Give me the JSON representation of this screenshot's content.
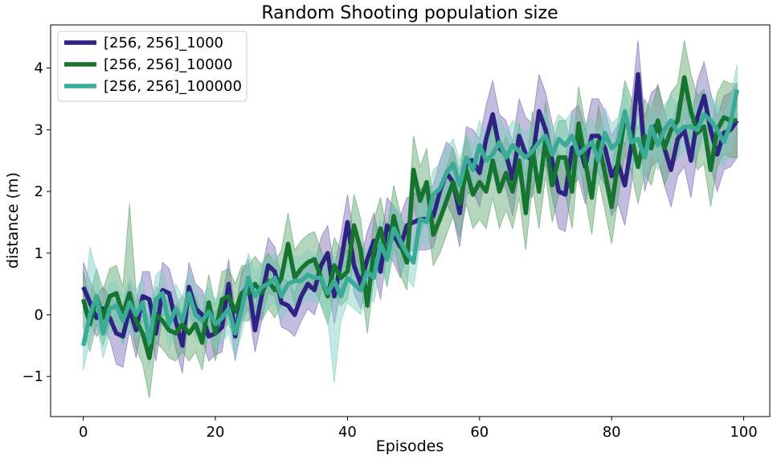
{
  "chart_data": {
    "type": "line",
    "title": "Random Shooting population size",
    "xlabel": "Episodes",
    "ylabel": "distance (m)",
    "xlim": [
      -4.95,
      103.95
    ],
    "ylim": [
      -1.65,
      4.7
    ],
    "xticks": [
      0,
      20,
      40,
      60,
      80,
      100
    ],
    "yticks": [
      -1,
      0,
      1,
      2,
      3,
      4
    ],
    "ytick_labels": [
      "−1",
      "0",
      "1",
      "2",
      "3",
      "4"
    ],
    "legend_position": "top-left",
    "grid": false,
    "band": "shaded variability band around each mean line",
    "series": [
      {
        "name": "[256, 256]_1000",
        "color": "#2e2383",
        "band_color": "#7b6bb5",
        "x": [
          0,
          1,
          2,
          3,
          4,
          5,
          6,
          7,
          8,
          9,
          10,
          11,
          12,
          13,
          14,
          15,
          16,
          17,
          18,
          19,
          20,
          21,
          22,
          23,
          24,
          25,
          26,
          27,
          28,
          29,
          30,
          31,
          32,
          33,
          34,
          35,
          36,
          37,
          38,
          39,
          40,
          41,
          42,
          43,
          44,
          45,
          46,
          47,
          48,
          49,
          50,
          51,
          52,
          53,
          54,
          55,
          56,
          57,
          58,
          59,
          60,
          61,
          62,
          63,
          64,
          65,
          66,
          67,
          68,
          69,
          70,
          71,
          72,
          73,
          74,
          75,
          76,
          77,
          78,
          79,
          80,
          81,
          82,
          83,
          84,
          85,
          86,
          87,
          88,
          89,
          90,
          91,
          92,
          93,
          94,
          95,
          96,
          97,
          98,
          99
        ],
        "mean": [
          0.45,
          0.2,
          -0.05,
          0.1,
          -0.05,
          -0.3,
          -0.35,
          0.1,
          -0.25,
          0.3,
          0.25,
          -0.3,
          0.4,
          0.35,
          -0.1,
          -0.5,
          0.45,
          0.1,
          0.0,
          -0.35,
          -0.3,
          -0.2,
          0.5,
          -0.35,
          0.3,
          0.5,
          -0.25,
          0.3,
          0.8,
          0.7,
          0.2,
          0.15,
          0.0,
          0.3,
          0.5,
          0.4,
          0.8,
          1.0,
          0.3,
          0.85,
          1.5,
          0.8,
          0.5,
          0.9,
          1.2,
          0.7,
          1.45,
          1.3,
          1.1,
          1.45,
          1.5,
          1.55,
          1.55,
          1.6,
          2.0,
          2.3,
          2.15,
          1.65,
          2.5,
          2.5,
          2.3,
          2.85,
          3.25,
          2.7,
          2.6,
          2.2,
          2.9,
          2.6,
          2.5,
          3.3,
          3.0,
          2.5,
          2.0,
          1.95,
          2.7,
          2.8,
          2.4,
          2.9,
          2.9,
          2.7,
          2.25,
          2.45,
          2.1,
          2.75,
          3.9,
          2.6,
          3.0,
          3.1,
          2.7,
          2.35,
          2.85,
          3.0,
          2.5,
          3.2,
          3.55,
          3.0,
          2.6,
          2.95,
          3.0,
          3.15
        ],
        "lower": [
          0.05,
          -0.15,
          -0.35,
          -0.2,
          -0.4,
          -0.8,
          -0.85,
          -0.25,
          -0.7,
          -0.1,
          -0.2,
          -0.75,
          0.0,
          -0.05,
          -0.55,
          -0.95,
          0.05,
          -0.3,
          -0.4,
          -0.75,
          -0.65,
          -0.6,
          0.1,
          -0.75,
          -0.1,
          0.1,
          -0.6,
          -0.1,
          0.35,
          0.3,
          -0.2,
          -0.25,
          -0.35,
          -0.1,
          0.1,
          0.0,
          0.35,
          0.55,
          -0.15,
          0.4,
          1.05,
          0.35,
          0.1,
          0.45,
          0.75,
          0.25,
          1.0,
          0.85,
          0.6,
          1.0,
          1.05,
          1.05,
          1.05,
          1.1,
          1.5,
          1.8,
          1.6,
          1.1,
          1.95,
          2.0,
          1.75,
          2.3,
          2.7,
          2.15,
          2.05,
          1.6,
          2.3,
          2.0,
          1.9,
          2.7,
          2.4,
          1.9,
          1.4,
          1.35,
          2.1,
          2.2,
          1.8,
          2.3,
          2.3,
          2.1,
          1.6,
          1.8,
          1.45,
          2.1,
          3.35,
          2.0,
          2.4,
          2.5,
          2.1,
          1.75,
          2.25,
          2.4,
          1.9,
          2.6,
          3.0,
          2.4,
          2.0,
          2.35,
          2.4,
          2.55
        ],
        "upper": [
          0.85,
          0.55,
          0.3,
          0.45,
          0.3,
          0.2,
          0.15,
          0.5,
          0.2,
          0.7,
          0.7,
          0.15,
          0.85,
          0.75,
          0.35,
          -0.05,
          0.85,
          0.5,
          0.4,
          0.05,
          0.05,
          0.2,
          0.9,
          0.05,
          0.7,
          0.9,
          0.1,
          0.7,
          1.25,
          1.1,
          0.6,
          0.55,
          0.35,
          0.7,
          0.9,
          0.8,
          1.25,
          1.45,
          0.75,
          1.3,
          1.95,
          1.25,
          0.9,
          1.35,
          1.65,
          1.15,
          1.9,
          1.75,
          1.6,
          1.9,
          1.95,
          2.05,
          2.05,
          2.1,
          2.5,
          2.8,
          2.7,
          2.2,
          3.05,
          3.0,
          2.85,
          3.4,
          3.8,
          3.25,
          3.15,
          2.8,
          3.5,
          3.2,
          3.1,
          3.9,
          3.6,
          3.1,
          2.6,
          2.55,
          3.3,
          3.4,
          3.0,
          3.5,
          3.5,
          3.3,
          2.9,
          3.1,
          2.75,
          3.4,
          4.45,
          3.2,
          3.6,
          3.7,
          3.3,
          2.95,
          3.45,
          3.6,
          3.1,
          3.8,
          4.1,
          3.6,
          3.2,
          3.55,
          3.6,
          3.75
        ]
      },
      {
        "name": "[256, 256]_10000",
        "color": "#15742f",
        "band_color": "#5aa46a",
        "x": [
          0,
          1,
          2,
          3,
          4,
          5,
          6,
          7,
          8,
          9,
          10,
          11,
          12,
          13,
          14,
          15,
          16,
          17,
          18,
          19,
          20,
          21,
          22,
          23,
          24,
          25,
          26,
          27,
          28,
          29,
          30,
          31,
          32,
          33,
          34,
          35,
          36,
          37,
          38,
          39,
          40,
          41,
          42,
          43,
          44,
          45,
          46,
          47,
          48,
          49,
          50,
          51,
          52,
          53,
          54,
          55,
          56,
          57,
          58,
          59,
          60,
          61,
          62,
          63,
          64,
          65,
          66,
          67,
          68,
          69,
          70,
          71,
          72,
          73,
          74,
          75,
          76,
          77,
          78,
          79,
          80,
          81,
          82,
          83,
          84,
          85,
          86,
          87,
          88,
          89,
          90,
          91,
          92,
          93,
          94,
          95,
          96,
          97,
          98,
          99
        ],
        "mean": [
          0.25,
          -0.15,
          0.3,
          -0.05,
          0.3,
          0.35,
          0.0,
          0.35,
          -0.1,
          -0.3,
          -0.7,
          0.0,
          -0.1,
          -0.25,
          -0.3,
          -0.15,
          -0.3,
          -0.15,
          -0.45,
          0.2,
          -0.3,
          0.25,
          0.3,
          0.05,
          0.35,
          0.35,
          0.5,
          0.35,
          0.55,
          0.4,
          0.6,
          1.15,
          0.6,
          0.75,
          0.85,
          0.9,
          0.6,
          0.3,
          0.8,
          0.6,
          0.7,
          1.45,
          1.05,
          0.15,
          1.05,
          1.4,
          0.9,
          1.6,
          1.15,
          0.85,
          2.35,
          1.85,
          2.15,
          1.3,
          1.55,
          1.85,
          2.15,
          1.8,
          2.35,
          1.95,
          2.15,
          2.0,
          2.5,
          2.0,
          2.3,
          2.0,
          2.5,
          1.65,
          2.7,
          2.0,
          2.85,
          2.1,
          2.55,
          2.55,
          2.0,
          3.1,
          2.5,
          1.9,
          2.8,
          2.3,
          1.75,
          2.5,
          3.2,
          2.9,
          2.4,
          2.9,
          2.7,
          3.15,
          2.7,
          3.0,
          3.15,
          3.85,
          3.3,
          2.95,
          3.05,
          2.35,
          3.0,
          3.2,
          3.15,
          3.15
        ],
        "lower": [
          -0.2,
          -0.6,
          -0.15,
          -0.5,
          -0.15,
          -0.1,
          -0.45,
          -0.1,
          -0.55,
          -0.8,
          -1.35,
          -0.45,
          -0.55,
          -0.7,
          -0.75,
          -0.6,
          -0.75,
          -0.6,
          -0.9,
          -0.25,
          -0.75,
          -0.2,
          -0.15,
          -0.4,
          -0.1,
          -0.1,
          0.05,
          -0.1,
          0.1,
          -0.05,
          0.15,
          0.65,
          0.15,
          0.3,
          0.4,
          0.45,
          0.15,
          -0.15,
          0.35,
          0.15,
          0.25,
          0.95,
          0.55,
          -0.3,
          0.55,
          0.9,
          0.45,
          1.1,
          0.65,
          0.4,
          1.8,
          1.3,
          1.6,
          0.8,
          1.0,
          1.3,
          1.6,
          1.25,
          1.8,
          1.4,
          1.55,
          1.4,
          1.9,
          1.4,
          1.7,
          1.4,
          1.9,
          1.05,
          2.1,
          1.4,
          2.25,
          1.5,
          1.95,
          1.95,
          1.4,
          2.5,
          1.9,
          1.3,
          2.2,
          1.7,
          1.15,
          1.9,
          2.6,
          2.3,
          1.8,
          2.3,
          2.1,
          2.55,
          2.1,
          2.4,
          2.55,
          3.25,
          2.7,
          2.35,
          2.45,
          1.75,
          2.4,
          2.6,
          2.55,
          2.55
        ],
        "upper": [
          0.7,
          0.3,
          0.75,
          0.4,
          0.75,
          0.8,
          0.45,
          1.8,
          0.35,
          0.15,
          -0.05,
          0.45,
          0.35,
          0.2,
          0.15,
          0.3,
          0.15,
          0.3,
          0.0,
          0.65,
          0.15,
          0.7,
          0.75,
          0.5,
          0.8,
          0.8,
          0.95,
          0.8,
          1.0,
          0.85,
          1.05,
          1.65,
          1.05,
          1.2,
          1.3,
          1.35,
          1.05,
          0.75,
          1.25,
          1.05,
          1.15,
          1.95,
          1.55,
          0.6,
          1.55,
          1.9,
          1.35,
          2.1,
          1.65,
          1.3,
          2.9,
          2.4,
          2.7,
          1.8,
          2.1,
          2.4,
          2.7,
          2.35,
          2.9,
          2.5,
          2.75,
          2.6,
          3.1,
          2.6,
          2.9,
          2.6,
          3.1,
          2.25,
          3.3,
          2.6,
          3.45,
          2.7,
          3.15,
          3.15,
          2.6,
          3.7,
          3.1,
          2.5,
          3.4,
          2.9,
          2.35,
          3.1,
          3.8,
          3.5,
          3.0,
          3.5,
          3.3,
          3.75,
          3.3,
          3.6,
          3.75,
          4.45,
          3.9,
          3.55,
          3.65,
          2.95,
          3.6,
          3.8,
          3.75,
          3.75
        ]
      },
      {
        "name": "[256, 256]_100000",
        "color": "#3aab97",
        "band_color": "#7dcfc0",
        "x": [
          0,
          1,
          2,
          3,
          4,
          5,
          6,
          7,
          8,
          9,
          10,
          11,
          12,
          13,
          14,
          15,
          16,
          17,
          18,
          19,
          20,
          21,
          22,
          23,
          24,
          25,
          26,
          27,
          28,
          29,
          30,
          31,
          32,
          33,
          34,
          35,
          36,
          37,
          38,
          39,
          40,
          41,
          42,
          43,
          44,
          45,
          46,
          47,
          48,
          49,
          50,
          51,
          52,
          53,
          54,
          55,
          56,
          57,
          58,
          59,
          60,
          61,
          62,
          63,
          64,
          65,
          66,
          67,
          68,
          69,
          70,
          71,
          72,
          73,
          74,
          75,
          76,
          77,
          78,
          79,
          80,
          81,
          82,
          83,
          84,
          85,
          86,
          87,
          88,
          89,
          90,
          91,
          92,
          93,
          94,
          95,
          96,
          97,
          98,
          99
        ],
        "mean": [
          -0.5,
          0.0,
          0.3,
          -0.3,
          0.1,
          0.15,
          -0.1,
          0.2,
          0.0,
          0.2,
          -0.45,
          0.25,
          0.35,
          -0.15,
          0.1,
          -0.1,
          0.35,
          0.0,
          -0.1,
          0.05,
          -0.15,
          -0.05,
          0.1,
          -0.3,
          0.1,
          0.6,
          0.3,
          0.45,
          0.5,
          0.6,
          0.3,
          0.5,
          0.55,
          0.55,
          0.65,
          0.6,
          0.6,
          0.35,
          0.55,
          0.3,
          0.6,
          0.5,
          0.4,
          0.7,
          0.6,
          1.15,
          0.9,
          1.4,
          1.2,
          1.0,
          0.85,
          1.55,
          1.5,
          1.95,
          2.05,
          2.3,
          2.45,
          2.1,
          2.55,
          2.35,
          2.75,
          2.5,
          2.6,
          2.8,
          2.55,
          2.75,
          2.65,
          2.55,
          2.65,
          2.8,
          2.9,
          2.6,
          2.85,
          2.75,
          2.9,
          2.6,
          2.7,
          2.8,
          2.5,
          2.95,
          2.7,
          2.8,
          3.3,
          2.8,
          2.85,
          2.55,
          3.05,
          2.75,
          3.0,
          3.15,
          2.95,
          3.05,
          3.05,
          3.0,
          3.25,
          3.15,
          3.0,
          2.8,
          3.1,
          3.65
        ],
        "lower": [
          -0.9,
          -0.4,
          -0.1,
          -0.7,
          -0.3,
          -0.25,
          -0.5,
          -0.2,
          -0.4,
          -0.2,
          -0.85,
          -0.15,
          -0.05,
          -0.55,
          -0.3,
          -0.5,
          -0.05,
          -0.4,
          -0.5,
          -0.35,
          -0.55,
          -0.45,
          -0.3,
          -0.7,
          -0.3,
          0.2,
          -0.1,
          0.05,
          0.1,
          0.2,
          -0.1,
          0.1,
          0.15,
          0.15,
          0.25,
          0.2,
          0.2,
          -0.05,
          -1.1,
          -0.1,
          0.2,
          0.1,
          0.0,
          0.3,
          0.2,
          0.75,
          0.5,
          1.0,
          0.8,
          0.6,
          0.45,
          1.15,
          1.1,
          1.55,
          1.65,
          1.9,
          2.05,
          1.7,
          2.15,
          1.95,
          2.35,
          2.1,
          2.2,
          2.4,
          2.15,
          2.35,
          2.25,
          2.15,
          2.25,
          2.4,
          2.5,
          2.2,
          2.45,
          2.35,
          2.5,
          2.2,
          2.3,
          2.4,
          2.1,
          2.55,
          2.3,
          2.4,
          2.9,
          2.4,
          2.45,
          2.15,
          2.65,
          2.35,
          2.6,
          2.75,
          2.55,
          2.65,
          2.65,
          2.6,
          2.85,
          2.75,
          2.6,
          2.4,
          2.7,
          3.25
        ],
        "upper": [
          -0.1,
          1.1,
          0.7,
          0.1,
          0.5,
          0.55,
          0.3,
          0.6,
          0.4,
          0.6,
          -0.05,
          0.65,
          0.75,
          0.25,
          0.5,
          0.3,
          0.75,
          0.4,
          0.3,
          0.45,
          0.25,
          0.35,
          0.5,
          0.1,
          0.5,
          1.0,
          0.7,
          0.85,
          0.9,
          1.0,
          0.7,
          0.9,
          0.95,
          0.95,
          1.05,
          1.0,
          1.0,
          0.75,
          0.95,
          0.7,
          1.0,
          0.9,
          0.8,
          1.1,
          1.0,
          1.55,
          1.3,
          1.8,
          1.6,
          1.4,
          1.25,
          1.95,
          1.9,
          2.35,
          2.45,
          2.7,
          2.85,
          2.5,
          2.95,
          2.75,
          3.15,
          2.9,
          3.0,
          3.2,
          2.95,
          3.15,
          3.05,
          2.95,
          3.05,
          3.2,
          3.3,
          3.0,
          3.25,
          3.15,
          3.3,
          3.0,
          3.1,
          3.2,
          2.9,
          3.35,
          3.1,
          3.2,
          3.7,
          3.2,
          3.25,
          2.95,
          3.45,
          3.15,
          3.4,
          3.55,
          3.35,
          3.45,
          3.45,
          3.4,
          3.65,
          3.55,
          3.4,
          3.2,
          3.5,
          4.05
        ]
      }
    ]
  }
}
